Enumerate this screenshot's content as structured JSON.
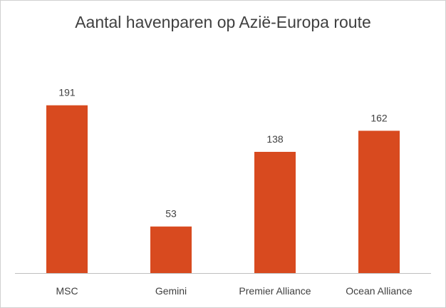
{
  "chart_data": {
    "type": "bar",
    "title": "Aantal havenparen  op Azië-Europa route",
    "categories": [
      "MSC",
      "Gemini",
      "Premier Alliance",
      "Ocean Alliance"
    ],
    "values": [
      191,
      53,
      138,
      162
    ],
    "xlabel": "",
    "ylabel": "",
    "ylim": [
      0,
      200
    ],
    "grid": false,
    "legend": "none",
    "bar_color": "#d84a1f",
    "axis_color": "#bfbfbf",
    "text_color": "#404040"
  }
}
